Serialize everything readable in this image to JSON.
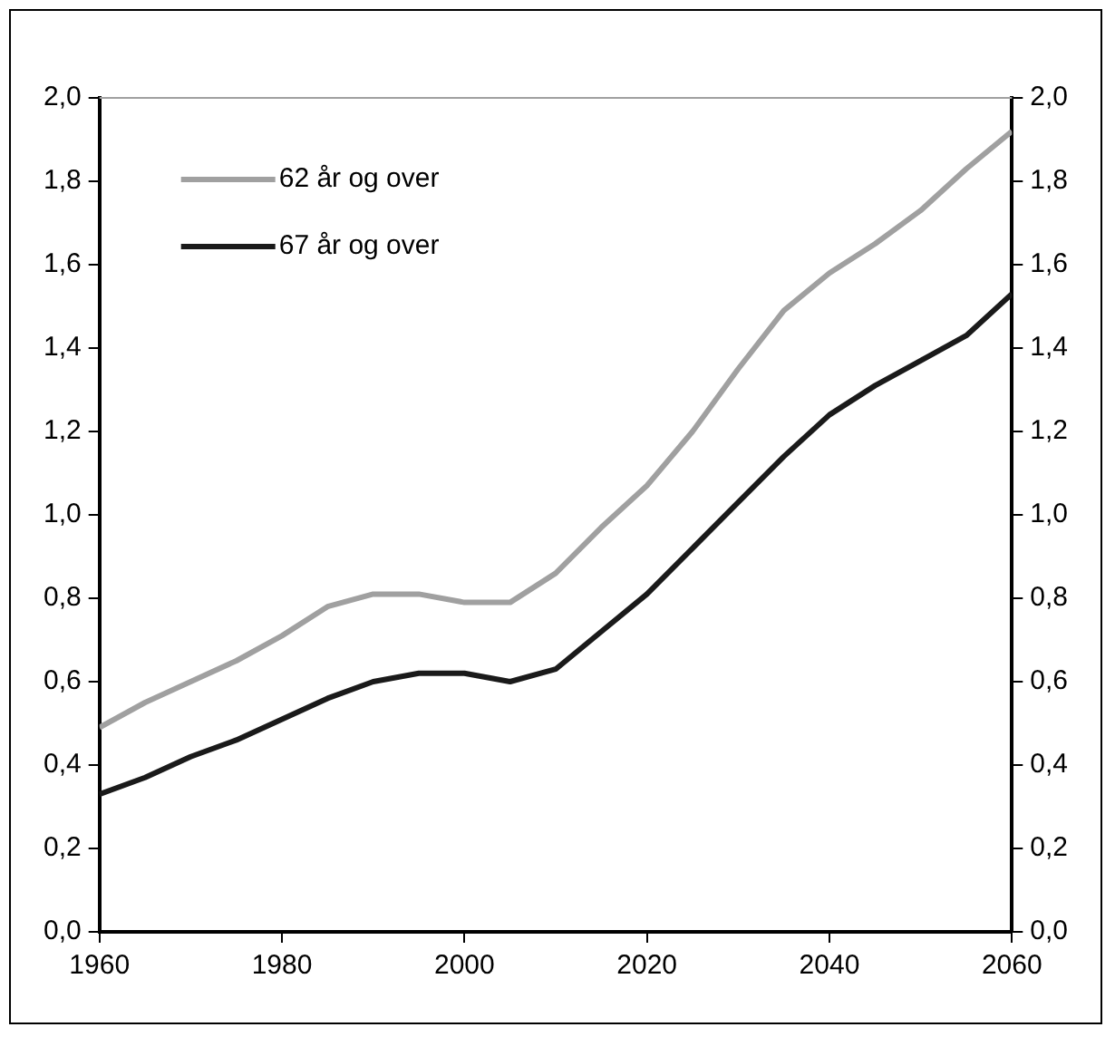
{
  "chart_data": {
    "type": "line",
    "x": [
      1960,
      1965,
      1970,
      1975,
      1980,
      1985,
      1990,
      1995,
      2000,
      2005,
      2010,
      2015,
      2020,
      2025,
      2030,
      2035,
      2040,
      2045,
      2050,
      2055,
      2060
    ],
    "series": [
      {
        "name": "62 år og over",
        "color": "#a0a0a0",
        "values": [
          0.49,
          0.55,
          0.6,
          0.65,
          0.71,
          0.78,
          0.81,
          0.81,
          0.79,
          0.79,
          0.86,
          0.97,
          1.07,
          1.2,
          1.35,
          1.49,
          1.58,
          1.65,
          1.73,
          1.83,
          1.92
        ]
      },
      {
        "name": "67 år og over",
        "color": "#1a1a1a",
        "values": [
          0.33,
          0.37,
          0.42,
          0.46,
          0.51,
          0.56,
          0.6,
          0.62,
          0.62,
          0.6,
          0.63,
          0.72,
          0.81,
          0.92,
          1.03,
          1.14,
          1.24,
          1.31,
          1.37,
          1.43,
          1.53
        ]
      }
    ],
    "xlim": [
      1960,
      2060
    ],
    "xticks": [
      1960,
      1980,
      2000,
      2020,
      2040,
      2060
    ],
    "ylim": [
      0,
      2
    ],
    "yticks": [
      {
        "value": 0,
        "label": "0,0"
      },
      {
        "value": 0.2,
        "label": "0,2"
      },
      {
        "value": 0.4,
        "label": "0,4"
      },
      {
        "value": 0.6,
        "label": "0,6"
      },
      {
        "value": 0.8,
        "label": "0,8"
      },
      {
        "value": 1,
        "label": "1,0"
      },
      {
        "value": 1.2,
        "label": "1,2"
      },
      {
        "value": 1.4,
        "label": "1,4"
      },
      {
        "value": 1.6,
        "label": "1,6"
      },
      {
        "value": 1.8,
        "label": "1,8"
      },
      {
        "value": 2,
        "label": "2,0"
      }
    ],
    "y2lim": [
      0,
      2
    ],
    "y2ticks": [
      {
        "value": 0,
        "label": "0,0"
      },
      {
        "value": 0.2,
        "label": "0,2"
      },
      {
        "value": 0.4,
        "label": "0,4"
      },
      {
        "value": 0.6,
        "label": "0,6"
      },
      {
        "value": 0.8,
        "label": "0,8"
      },
      {
        "value": 1,
        "label": "1,0"
      },
      {
        "value": 1.2,
        "label": "1,2"
      },
      {
        "value": 1.4,
        "label": "1,4"
      },
      {
        "value": 1.6,
        "label": "1,6"
      },
      {
        "value": 1.8,
        "label": "1,8"
      },
      {
        "value": 2,
        "label": "2,0"
      }
    ],
    "grid": false,
    "legend": "top left",
    "marker": "none",
    "line_style": "solid"
  }
}
